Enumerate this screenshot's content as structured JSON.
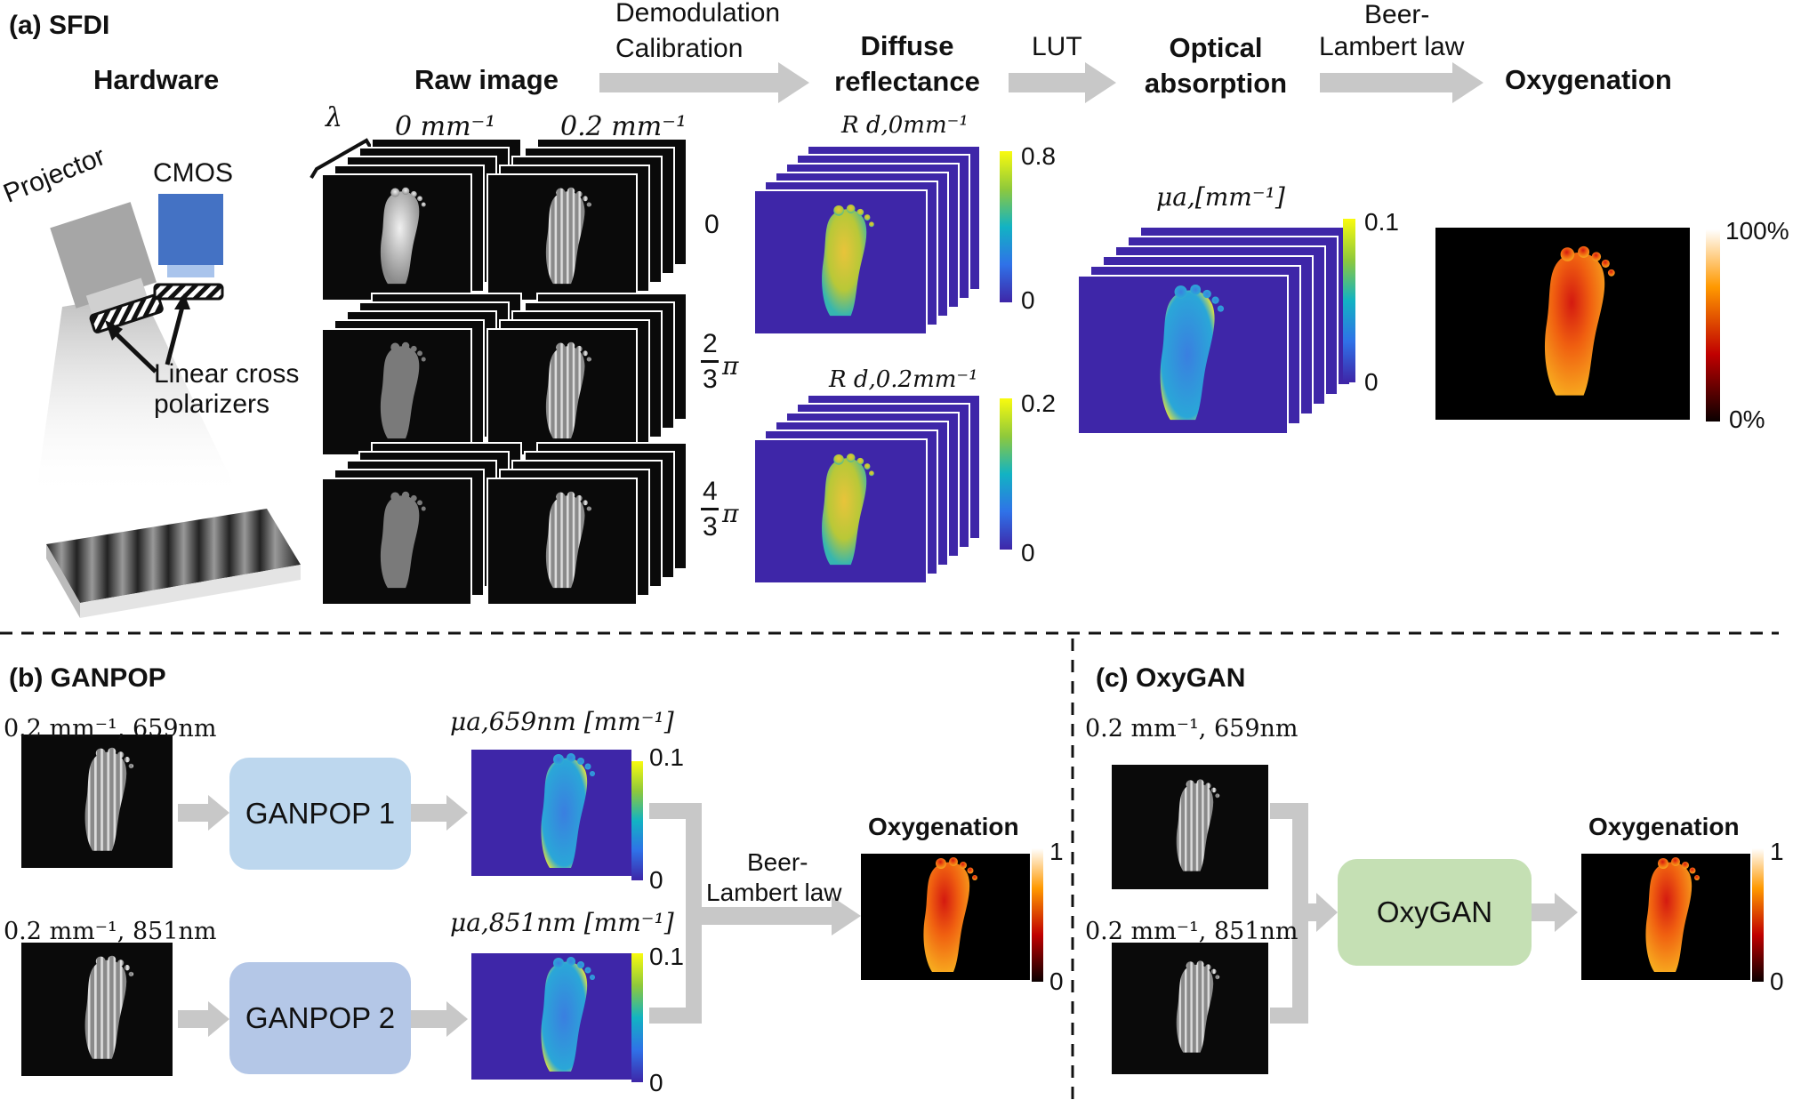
{
  "panel_a": {
    "title": "(a) SFDI",
    "headers": {
      "hardware": "Hardware",
      "raw_image": "Raw image",
      "diffuse": "Diffuse reflectance",
      "optical": "Optical absorption",
      "oxygenation": "Oxygenation"
    },
    "arrow_labels": {
      "demod_1": "Demodulation",
      "demod_2": "Calibration",
      "lut": "LUT",
      "beer_1": "Beer-",
      "beer_2": "Lambert law"
    },
    "hardware": {
      "projector": "Projector",
      "cmos": "CMOS",
      "polarizers_1": "Linear cross",
      "polarizers_2": "polarizers"
    },
    "raw": {
      "lambda": "λ",
      "freq_0": "0 mm⁻¹",
      "freq_02": "0.2 mm⁻¹",
      "phase_0": "0",
      "phase_2_num": "2",
      "phase_2_den": "3",
      "phase_4_num": "4",
      "phase_4_den": "3",
      "pi": "π"
    },
    "rd0": {
      "label": "R d,0mm⁻¹",
      "max": "0.8",
      "min": "0"
    },
    "rd02": {
      "label": "R d,0.2mm⁻¹",
      "max": "0.2",
      "min": "0"
    },
    "mua": {
      "label": "μa,[mm⁻¹]",
      "max": "0.1",
      "min": "0"
    },
    "oxy": {
      "max": "100%",
      "min": "0%"
    }
  },
  "panel_b": {
    "title": "(b) GANPOP",
    "input1": "0.2 mm⁻¹, 659nm",
    "input2": "0.2 mm⁻¹, 851nm",
    "net1": "GANPOP 1",
    "net2": "GANPOP 2",
    "out1": "μa,659nm [mm⁻¹]",
    "out2": "μa,851nm [mm⁻¹]",
    "out1_max": "0.1",
    "out1_min": "0",
    "out2_max": "0.1",
    "out2_min": "0",
    "beer_1": "Beer-",
    "beer_2": "Lambert law",
    "oxy_title": "Oxygenation",
    "oxy_max": "1",
    "oxy_min": "0"
  },
  "panel_c": {
    "title": "(c) OxyGAN",
    "input1": "0.2 mm⁻¹, 659nm",
    "input2": "0.2 mm⁻¹, 851nm",
    "net": "OxyGAN",
    "oxy_title": "Oxygenation",
    "oxy_max": "1",
    "oxy_min": "0"
  },
  "colors": {
    "arrow": "#c8c8c8",
    "ganpop1": "#bdd7ee",
    "ganpop2": "#b4c7e7",
    "oxygan": "#c5e0b4",
    "cmos": "#4472c4",
    "parula_low": "#3e26a8",
    "parula_high": "#f9fb0e"
  }
}
